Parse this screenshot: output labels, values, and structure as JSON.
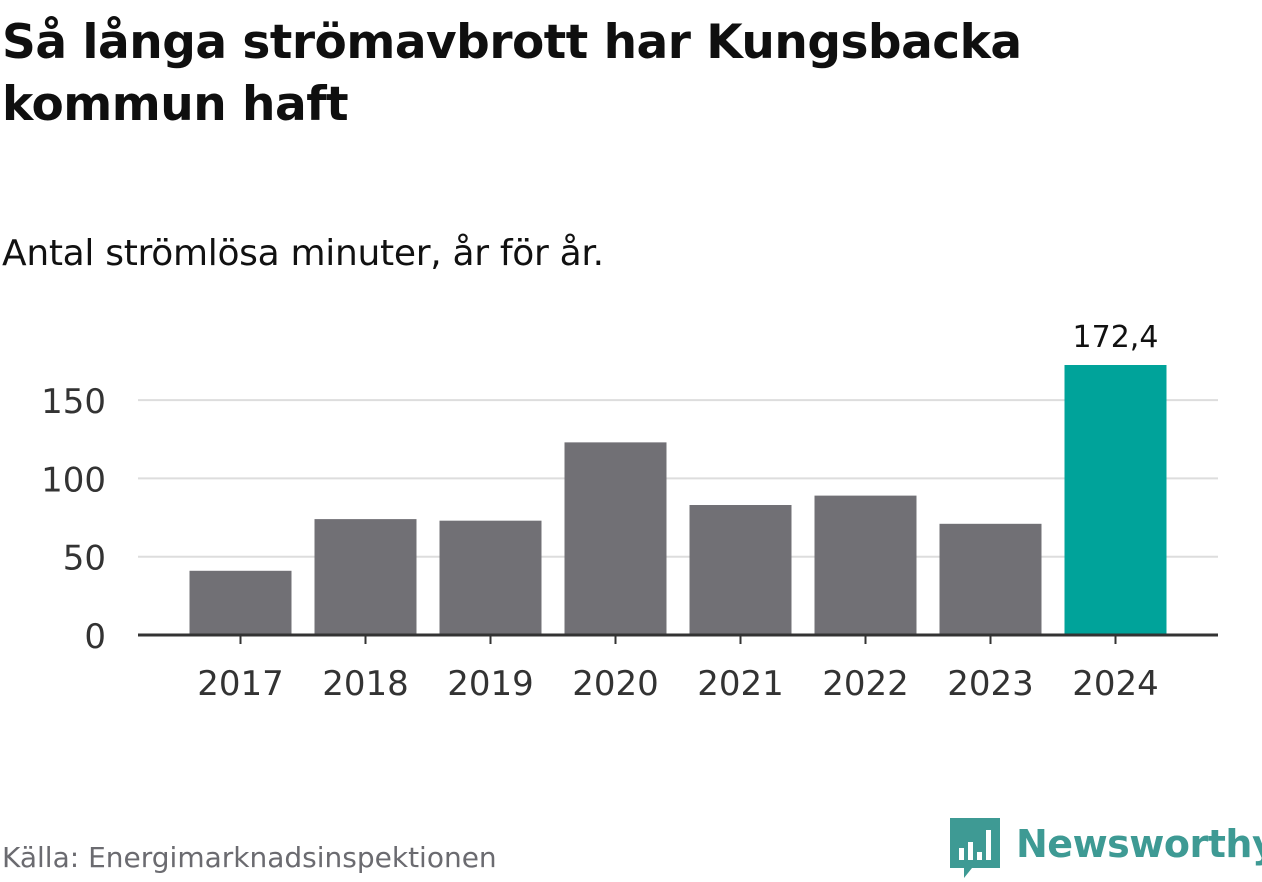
{
  "title": "Så långa strömavbrott har Kungsbacka kommun haft",
  "subtitle": "Antal strömlösa minuter, år för år.",
  "source": "Källa: Energimarknadsinspektionen",
  "brand": {
    "name": "Newsworthy",
    "logo_icon": "newsworthy-logo-icon",
    "color": "#3e9a94"
  },
  "colors": {
    "bar_default": "#717075",
    "bar_highlight": "#00a39a",
    "grid": "#dddddd",
    "axis": "#333333",
    "tick_text": "#333333",
    "label_text": "#111111"
  },
  "chart_data": {
    "type": "bar",
    "title": "Så långa strömavbrott har Kungsbacka kommun haft",
    "subtitle": "Antal strömlösa minuter, år för år.",
    "xlabel": "",
    "ylabel": "",
    "categories": [
      "2017",
      "2018",
      "2019",
      "2020",
      "2021",
      "2022",
      "2023",
      "2024"
    ],
    "values": [
      41,
      74,
      73,
      123,
      83,
      89,
      71,
      172.4
    ],
    "highlight": [
      "2024"
    ],
    "data_labels": [
      {
        "category": "2024",
        "text": "172,4"
      }
    ],
    "ylim": [
      0,
      172.4
    ],
    "yticks": [
      {
        "value": 0,
        "label": "0"
      },
      {
        "value": 50,
        "label": "50"
      },
      {
        "value": 100,
        "label": "100"
      },
      {
        "value": 150,
        "label": "150"
      }
    ],
    "grid": true,
    "legend": "none"
  }
}
